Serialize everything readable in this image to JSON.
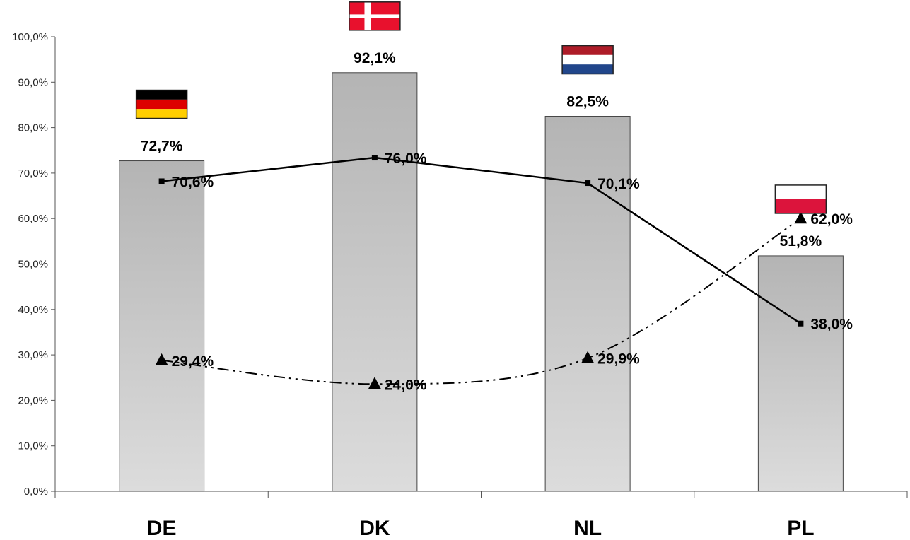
{
  "chart_data": {
    "type": "bar",
    "categories": [
      "DE",
      "DK",
      "NL",
      "PL"
    ],
    "ylim": [
      0,
      100
    ],
    "y_ticks": [
      "0,0%",
      "10,0%",
      "20,0%",
      "30,0%",
      "40,0%",
      "50,0%",
      "60,0%",
      "70,0%",
      "80,0%",
      "90,0%",
      "100,0%"
    ],
    "grid": false,
    "series": [
      {
        "kind": "bar",
        "values": [
          72.7,
          92.1,
          82.5,
          51.8
        ],
        "labels": [
          "72,7%",
          "92,1%",
          "82,5%",
          "51,8%"
        ],
        "color": "#c8c8c8"
      },
      {
        "kind": "line",
        "marker": "square",
        "line_style": "solid",
        "values": [
          68.2,
          73.4,
          67.8,
          36.9
        ],
        "labels": [
          "70,6%",
          "76,0%",
          "70,1%",
          "38,0%"
        ],
        "color": "#000000"
      },
      {
        "kind": "line",
        "marker": "triangle",
        "line_style": "dash-dot",
        "values": [
          28.8,
          23.6,
          29.3,
          60.0
        ],
        "labels": [
          "29,4%",
          "24,0%",
          "29,9%",
          "62,0%"
        ],
        "color": "#000000"
      }
    ],
    "flags": [
      {
        "category": "DE",
        "icon": "germany-flag",
        "stripes": [
          "#000000",
          "#dd0000",
          "#ffce00"
        ]
      },
      {
        "category": "DK",
        "icon": "denmark-flag",
        "field": "#e8112d",
        "cross": "#ffffff"
      },
      {
        "category": "NL",
        "icon": "netherlands-flag",
        "stripes": [
          "#ae1c28",
          "#ffffff",
          "#21468b"
        ]
      },
      {
        "category": "PL",
        "icon": "poland-flag",
        "stripes": [
          "#ffffff",
          "#dc143c"
        ]
      }
    ]
  }
}
